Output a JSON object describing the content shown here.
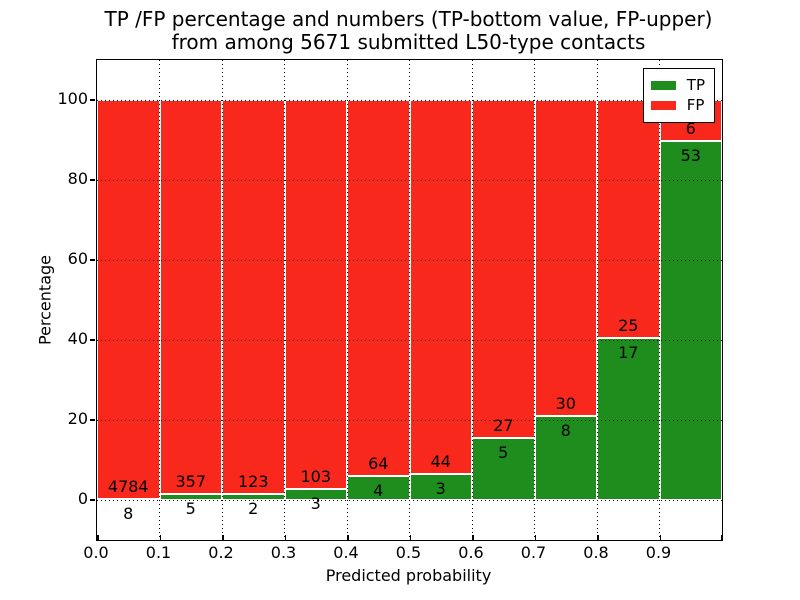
{
  "title": {
    "line1": "TP /FP percentage and numbers (TP-bottom value, FP-upper)",
    "line2": "from among 5671 submitted L50-type contacts"
  },
  "chart_data": {
    "type": "bar",
    "subtype": "stacked-percentage",
    "title": "TP /FP percentage and numbers (TP-bottom value, FP-upper) from among 5671 submitted L50-type contacts",
    "xlabel": "Predicted probability",
    "ylabel": "Percentage",
    "total_contacts": 5671,
    "bins": [
      "0.0-0.1",
      "0.1-0.2",
      "0.2-0.3",
      "0.3-0.4",
      "0.4-0.5",
      "0.5-0.6",
      "0.6-0.7",
      "0.7-0.8",
      "0.8-0.9",
      "0.9-1.0"
    ],
    "x_tick_labels": [
      "0.0",
      "0.1",
      "0.2",
      "0.3",
      "0.4",
      "0.5",
      "0.6",
      "0.7",
      "0.8",
      "0.9"
    ],
    "y_ticks": [
      0,
      20,
      40,
      60,
      80,
      100
    ],
    "xlim": [
      0.0,
      1.0
    ],
    "ylim": [
      -10,
      110
    ],
    "grid": {
      "style": "dotted",
      "color": "#000000"
    },
    "series": [
      {
        "name": "TP",
        "color": "#1f8c1e",
        "counts": [
          8,
          5,
          2,
          3,
          4,
          3,
          5,
          8,
          17,
          53
        ],
        "percent": [
          0.17,
          1.38,
          1.6,
          2.83,
          5.88,
          6.38,
          15.63,
          21.05,
          40.48,
          89.83
        ]
      },
      {
        "name": "FP",
        "color": "#f9281d",
        "counts": [
          4784,
          357,
          123,
          103,
          64,
          44,
          27,
          30,
          25,
          6
        ],
        "percent": [
          99.83,
          98.62,
          98.4,
          97.17,
          94.12,
          93.62,
          84.38,
          78.95,
          59.52,
          10.17
        ]
      }
    ],
    "legend": {
      "position": "upper-right",
      "entries": [
        {
          "label": "TP",
          "color": "#1f8c1e"
        },
        {
          "label": "FP",
          "color": "#f9281d"
        }
      ]
    }
  },
  "colors": {
    "tp": "#1f8c1e",
    "fp": "#f9281d",
    "background": "#ffffff",
    "axis": "#000000"
  }
}
